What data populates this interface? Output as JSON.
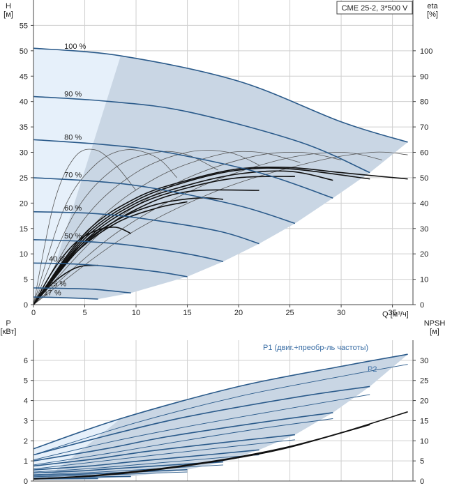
{
  "chart_data": [
    {
      "type": "line",
      "title": "CME 25-2, 3*500 V",
      "ylabel": "H",
      "ylabel_unit": "[м]",
      "y2label": "eta",
      "y2label_unit": "[%]",
      "xlabel": "Q [м³/ч]",
      "xlim": [
        0,
        37
      ],
      "ylim": [
        0,
        60
      ],
      "y2lim": [
        0,
        120
      ],
      "x_ticks": [
        "0",
        "5",
        "10",
        "15",
        "20",
        "25",
        "30",
        "35"
      ],
      "y_ticks": [
        "0",
        "5",
        "10",
        "15",
        "20",
        "25",
        "30",
        "35",
        "40",
        "45",
        "50",
        "55"
      ],
      "y2_ticks": [
        "0",
        "10",
        "20",
        "30",
        "40",
        "50",
        "60",
        "70",
        "80",
        "90",
        "100"
      ],
      "grid": true,
      "speed_labels": [
        "100 %",
        "90 %",
        "80 %",
        "70 %",
        "60 %",
        "50 %",
        "40 %",
        "25 %",
        "17 %"
      ],
      "operating_area": {
        "color": "#c9d6e4",
        "low_flow_color": "#e6f0fa"
      },
      "colors": {
        "head": "#2a5a8a",
        "efficiency": "#111111",
        "efficiency_thin": "#555555"
      },
      "head_curves": [
        {
          "speed": "100 %",
          "x": [
            0,
            8.5,
            20,
            30,
            36.5
          ],
          "y": [
            50.5,
            49,
            44,
            36,
            32
          ]
        },
        {
          "speed": "90 %",
          "x": [
            0,
            7.5,
            15,
            26,
            32.8
          ],
          "y": [
            41,
            40,
            38,
            32,
            26
          ]
        },
        {
          "speed": "80 %",
          "x": [
            0,
            7,
            13,
            22,
            29.2
          ],
          "y": [
            32.5,
            31.5,
            30,
            26,
            21
          ]
        },
        {
          "speed": "70 %",
          "x": [
            0,
            6,
            11.5,
            20,
            25.5
          ],
          "y": [
            25,
            24.3,
            23,
            19.5,
            16
          ]
        },
        {
          "speed": "60 %",
          "x": [
            0,
            5.5,
            10.5,
            18,
            22
          ],
          "y": [
            18.3,
            18,
            17,
            14.5,
            12
          ]
        },
        {
          "speed": "50 %",
          "x": [
            0,
            4.5,
            9,
            15,
            18.5
          ],
          "y": [
            12.8,
            12.5,
            11.8,
            10,
            8.5
          ]
        },
        {
          "speed": "40 %",
          "x": [
            0,
            4,
            7.5,
            12,
            15
          ],
          "y": [
            8.2,
            8,
            7.5,
            6.5,
            5.5
          ]
        },
        {
          "speed": "25 %",
          "x": [
            0,
            3,
            6,
            9.5
          ],
          "y": [
            3.3,
            3.2,
            3,
            2.3
          ]
        },
        {
          "speed": "17 %",
          "x": [
            0,
            2.5,
            6.3
          ],
          "y": [
            1.5,
            1.4,
            1.1
          ]
        }
      ],
      "efficiency_curves": [
        {
          "speed": "100 %",
          "x": [
            0,
            5,
            10,
            15,
            20,
            25,
            30,
            36.5
          ],
          "y": [
            0,
            28,
            42,
            49,
            53.5,
            54,
            52,
            49.5
          ]
        },
        {
          "speed": "90 %",
          "x": [
            0,
            5,
            10,
            15,
            20,
            25,
            32.8
          ],
          "y": [
            0,
            27,
            41,
            48.5,
            53,
            53.5,
            49.5
          ]
        },
        {
          "speed": "80 %",
          "x": [
            0,
            5,
            10,
            15,
            20,
            25,
            29.2
          ],
          "y": [
            0,
            26,
            40,
            47,
            51.5,
            52.5,
            49
          ]
        },
        {
          "speed": "70 %",
          "x": [
            0,
            5,
            10,
            15,
            20,
            25.5
          ],
          "y": [
            0,
            25,
            39,
            46,
            50,
            50.5
          ]
        },
        {
          "speed": "60 %",
          "x": [
            0,
            5,
            10,
            15,
            22
          ],
          "y": [
            0,
            24,
            37.5,
            44.5,
            45
          ]
        },
        {
          "speed": "50 %",
          "x": [
            0,
            4,
            8,
            12,
            16,
            18.5
          ],
          "y": [
            0,
            21,
            33,
            39.5,
            42,
            41.5
          ]
        },
        {
          "speed": "40 %",
          "x": [
            0,
            4,
            8,
            12,
            15
          ],
          "y": [
            0,
            20,
            32,
            38,
            40.5
          ]
        },
        {
          "speed": "25 %",
          "x": [
            0,
            2,
            4,
            6,
            8,
            9.5
          ],
          "y": [
            0,
            14,
            24,
            29,
            30.5,
            28
          ]
        },
        {
          "speed": "17 %",
          "x": [
            0,
            1.5,
            3,
            4.5,
            6.3
          ],
          "y": [
            0,
            7,
            12,
            15,
            15.5
          ]
        }
      ],
      "efficiency_family": [
        {
          "x": [
            0,
            2,
            4,
            6,
            8,
            10
          ],
          "y": [
            0,
            40,
            58,
            61,
            55,
            45
          ]
        },
        {
          "x": [
            0,
            3,
            6,
            9,
            12,
            14
          ],
          "y": [
            0,
            38,
            55,
            61,
            58,
            50
          ]
        },
        {
          "x": [
            0,
            4,
            8,
            12,
            15,
            18
          ],
          "y": [
            0,
            36,
            54,
            60,
            59,
            53
          ]
        },
        {
          "x": [
            0,
            5,
            10,
            15,
            19,
            22
          ],
          "y": [
            0,
            34,
            52,
            60,
            60,
            55
          ]
        },
        {
          "x": [
            0,
            6,
            12,
            18,
            22,
            26
          ],
          "y": [
            0,
            32,
            50,
            59,
            60,
            56
          ]
        },
        {
          "x": [
            0,
            7,
            14,
            21,
            26,
            30
          ],
          "y": [
            0,
            30,
            48,
            58,
            60,
            57
          ]
        },
        {
          "x": [
            0,
            8,
            16,
            24,
            30,
            34
          ],
          "y": [
            0,
            28,
            46,
            57,
            60,
            57
          ]
        },
        {
          "x": [
            0,
            9,
            18,
            27,
            33,
            36.5
          ],
          "y": [
            0,
            27,
            45,
            56,
            60,
            59
          ]
        }
      ]
    },
    {
      "type": "line",
      "ylabel": "P",
      "ylabel_unit": "[кВт]",
      "y2label": "NPSH",
      "y2label_unit": "[м]",
      "xlim": [
        0,
        37
      ],
      "ylim": [
        0,
        7
      ],
      "y2lim": [
        0,
        35
      ],
      "y_ticks": [
        "0",
        "1",
        "2",
        "3",
        "4",
        "5",
        "6"
      ],
      "y2_ticks": [
        "0",
        "5",
        "10",
        "15",
        "20",
        "25",
        "30"
      ],
      "grid": true,
      "operating_area": {
        "color": "#c9d6e4",
        "low_flow_color": "#e6f0fa"
      },
      "colors": {
        "p1": "#2a5a8a",
        "p2": "#2a5a8a",
        "npsh": "#111111"
      },
      "series_labels": [
        "P1 (двиг.+преобр-ль частоты)",
        "P2"
      ],
      "p1_curves": [
        {
          "speed": "100 %",
          "x": [
            0,
            8.5,
            20,
            30,
            36.5
          ],
          "y": [
            1.6,
            3.1,
            4.7,
            5.7,
            6.3
          ]
        },
        {
          "speed": "90 %",
          "x": [
            0,
            7.5,
            15,
            26,
            32.8
          ],
          "y": [
            1.3,
            2.3,
            3.2,
            4.2,
            4.7
          ]
        },
        {
          "speed": "80 %",
          "x": [
            0,
            7,
            13,
            22,
            29.2
          ],
          "y": [
            1.0,
            1.6,
            2.2,
            2.9,
            3.4
          ]
        },
        {
          "speed": "70 %",
          "x": [
            0,
            6,
            11.5,
            20,
            25.5
          ],
          "y": [
            0.75,
            1.1,
            1.5,
            2.0,
            2.3
          ]
        },
        {
          "speed": "60 %",
          "x": [
            0,
            5.5,
            10.5,
            18,
            22
          ],
          "y": [
            0.55,
            0.75,
            1.0,
            1.35,
            1.55
          ]
        },
        {
          "speed": "50 %",
          "x": [
            0,
            4.5,
            9,
            15,
            18.5
          ],
          "y": [
            0.4,
            0.5,
            0.65,
            0.85,
            0.95
          ]
        },
        {
          "speed": "40 %",
          "x": [
            0,
            4,
            7.5,
            12,
            15
          ],
          "y": [
            0.28,
            0.33,
            0.4,
            0.5,
            0.56
          ]
        },
        {
          "speed": "25 %",
          "x": [
            0,
            3,
            6,
            9.5
          ],
          "y": [
            0.15,
            0.17,
            0.2,
            0.23
          ]
        },
        {
          "speed": "17 %",
          "x": [
            0,
            2.5,
            6.3
          ],
          "y": [
            0.1,
            0.11,
            0.12
          ]
        }
      ],
      "p2_curves": [
        {
          "speed": "100 %",
          "x": [
            0,
            10,
            20,
            30,
            36.5
          ],
          "y": [
            1.3,
            2.9,
            4.2,
            5.2,
            5.8
          ]
        },
        {
          "speed": "90 %",
          "x": [
            0,
            8,
            16,
            26,
            32.8
          ],
          "y": [
            1.05,
            2.0,
            2.8,
            3.7,
            4.3
          ]
        },
        {
          "speed": "80 %",
          "x": [
            0,
            7,
            14,
            22,
            29.2
          ],
          "y": [
            0.8,
            1.35,
            1.95,
            2.6,
            3.1
          ]
        },
        {
          "speed": "70 %",
          "x": [
            0,
            6,
            12,
            20,
            25.5
          ],
          "y": [
            0.6,
            0.95,
            1.3,
            1.75,
            2.05
          ]
        },
        {
          "speed": "60 %",
          "x": [
            0,
            5.5,
            11,
            18,
            22
          ],
          "y": [
            0.45,
            0.62,
            0.85,
            1.15,
            1.3
          ]
        },
        {
          "speed": "50 %",
          "x": [
            0,
            4.5,
            9,
            15,
            18.5
          ],
          "y": [
            0.32,
            0.4,
            0.52,
            0.7,
            0.8
          ]
        },
        {
          "speed": "40 %",
          "x": [
            0,
            4,
            8,
            12,
            15
          ],
          "y": [
            0.22,
            0.26,
            0.32,
            0.4,
            0.45
          ]
        }
      ],
      "npsh_curves": [
        {
          "x": [
            0,
            5,
            10,
            15,
            20,
            25,
            30,
            36.5
          ],
          "y": [
            0.5,
            1.2,
            2.4,
            4.0,
            6.0,
            8.6,
            12.0,
            17.2
          ]
        },
        {
          "x": [
            0,
            5,
            10,
            15,
            20,
            25,
            32.8
          ],
          "y": [
            0.5,
            1.1,
            2.2,
            3.8,
            5.8,
            8.4,
            14.0
          ]
        }
      ]
    }
  ]
}
